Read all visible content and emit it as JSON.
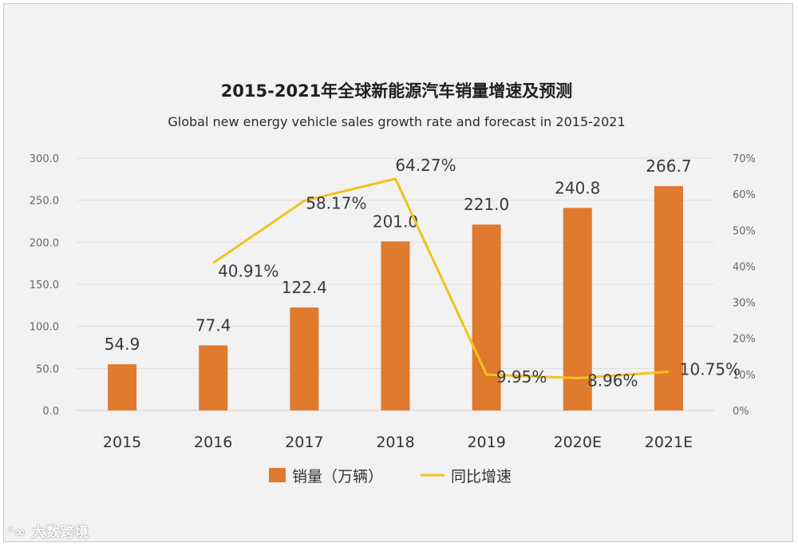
{
  "chart_data": {
    "type": "bar+line",
    "title": "2015-2021年全球新能源汽车销量增速及预测",
    "subtitle": "Global new energy vehicle sales growth rate and forecast in 2015-2021",
    "categories": [
      "2015",
      "2016",
      "2017",
      "2018",
      "2019",
      "2020E",
      "2021E"
    ],
    "series": [
      {
        "name": "销量（万辆）",
        "type": "bar",
        "axis": "left",
        "color": "#e07a2e",
        "values": [
          54.9,
          77.4,
          122.4,
          201.0,
          221.0,
          240.8,
          266.7
        ],
        "labels": [
          "54.9",
          "77.4",
          "122.4",
          "201.0",
          "221.0",
          "240.8",
          "266.7"
        ]
      },
      {
        "name": "同比增速",
        "type": "line",
        "axis": "right",
        "color": "#f2c21c",
        "values": [
          null,
          40.91,
          58.17,
          64.27,
          9.95,
          8.96,
          10.75
        ],
        "labels": [
          "",
          "40.91%",
          "58.17%",
          "64.27%",
          "9.95%",
          "8.96%",
          "10.75%"
        ]
      }
    ],
    "y_left": {
      "range": [
        0,
        300
      ],
      "ticks": [
        "0.0",
        "50.0",
        "100.0",
        "150.0",
        "200.0",
        "250.0",
        "300.0"
      ]
    },
    "y_right": {
      "range": [
        0,
        70
      ],
      "ticks": [
        "0%",
        "10%",
        "20%",
        "30%",
        "40%",
        "50%",
        "60%",
        "70%"
      ]
    },
    "legend": {
      "placement": "bottom-center"
    },
    "grid": true
  },
  "watermark": "大数跨境"
}
